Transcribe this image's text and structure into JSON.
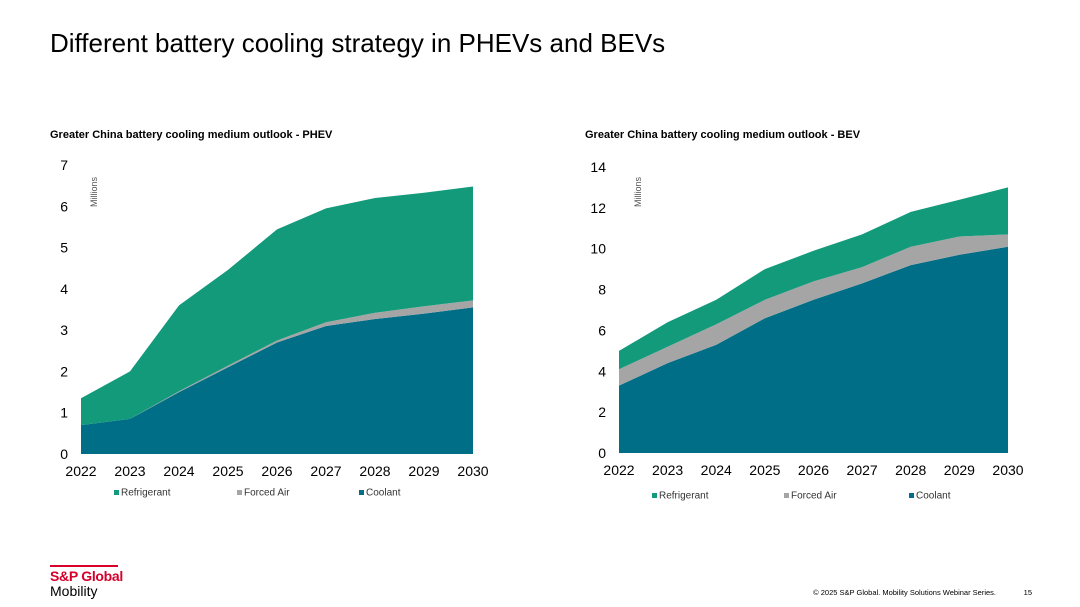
{
  "slide": {
    "title": "Different battery cooling strategy in PHEVs and BEVs",
    "logo_brand": "S&P Global",
    "logo_sub": "Mobility",
    "footer": "© 2025 S&P Global. Mobility Solutions Webinar Series.",
    "page_number": "15"
  },
  "colors": {
    "refrigerant": "#129a7a",
    "forced_air": "#a5a5a5",
    "coolant": "#006e87"
  },
  "chart_data": [
    {
      "type": "area",
      "stacked": true,
      "title": "Greater China battery cooling medium outlook - PHEV",
      "ylabel": "Millions",
      "x": [
        "2022",
        "2023",
        "2024",
        "2025",
        "2026",
        "2027",
        "2028",
        "2029",
        "2030"
      ],
      "ylim": [
        0,
        7
      ],
      "yticks": [
        0,
        1,
        2,
        3,
        4,
        5,
        6,
        7
      ],
      "grid": false,
      "legend_position": "bottom",
      "series": [
        {
          "name": "Coolant",
          "values": [
            0.7,
            0.85,
            1.5,
            2.1,
            2.7,
            3.1,
            3.27,
            3.4,
            3.55
          ]
        },
        {
          "name": "Forced Air",
          "values": [
            0.0,
            0.0,
            0.02,
            0.04,
            0.05,
            0.09,
            0.15,
            0.18,
            0.17
          ]
        },
        {
          "name": "Refrigerant",
          "values": [
            0.65,
            1.15,
            2.08,
            2.32,
            2.69,
            2.76,
            2.78,
            2.75,
            2.76
          ]
        }
      ],
      "legend": [
        "Refrigerant",
        "Forced Air",
        "Coolant"
      ]
    },
    {
      "type": "area",
      "stacked": true,
      "title": "Greater China battery cooling medium outlook - BEV",
      "ylabel": "Millions",
      "x": [
        "2022",
        "2023",
        "2024",
        "2025",
        "2026",
        "2027",
        "2028",
        "2029",
        "2030"
      ],
      "ylim": [
        0,
        14
      ],
      "yticks": [
        0,
        2,
        4,
        6,
        8,
        10,
        12,
        14
      ],
      "grid": false,
      "legend_position": "bottom",
      "series": [
        {
          "name": "Coolant",
          "values": [
            3.3,
            4.4,
            5.3,
            6.6,
            7.5,
            8.3,
            9.2,
            9.7,
            10.1
          ]
        },
        {
          "name": "Forced Air",
          "values": [
            0.8,
            0.8,
            1.0,
            0.9,
            0.9,
            0.8,
            0.9,
            0.9,
            0.6
          ]
        },
        {
          "name": "Refrigerant",
          "values": [
            0.9,
            1.2,
            1.2,
            1.5,
            1.5,
            1.6,
            1.7,
            1.8,
            2.3
          ]
        }
      ],
      "legend": [
        "Refrigerant",
        "Forced Air",
        "Coolant"
      ]
    }
  ]
}
